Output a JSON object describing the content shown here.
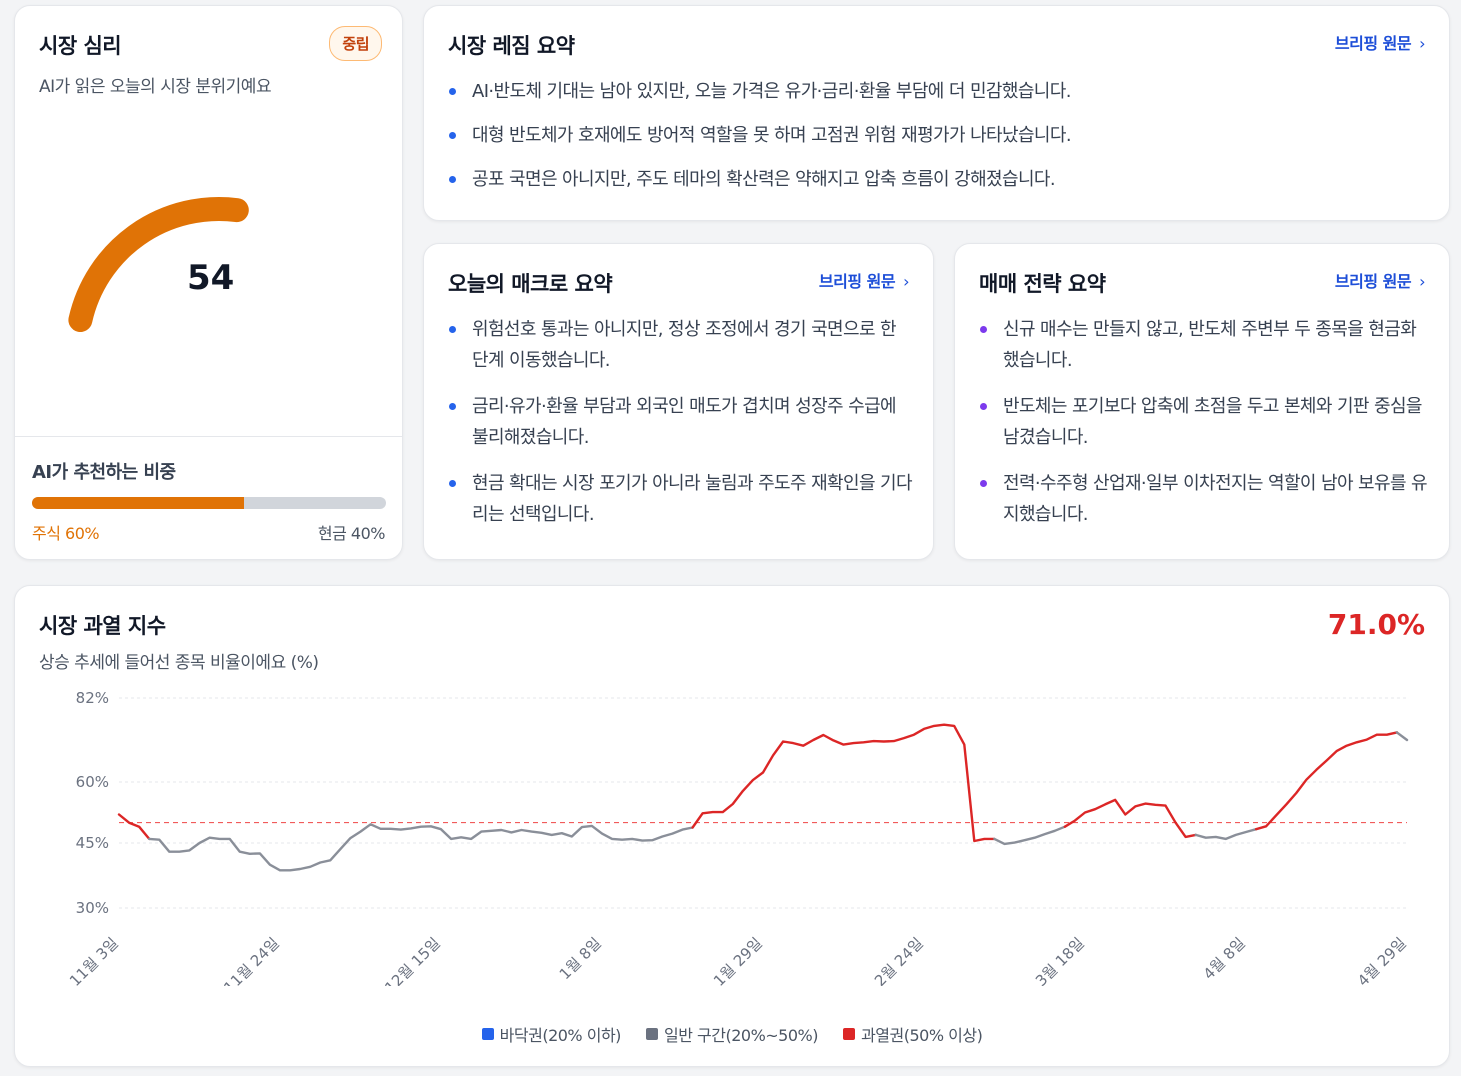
{
  "sentiment": {
    "title": "시장 심리",
    "subtitle": "AI가 읽은 오늘의 시장 분위기예요",
    "badge": "중립",
    "score": "54",
    "score_value": 54,
    "gauge_color": "#e07306",
    "weight_title": "AI가 추천하는 비중",
    "stock_label": "주식 60%",
    "cash_label": "현금 40%",
    "stock_fraction": 0.6
  },
  "regime": {
    "title": "시장 레짐 요약",
    "link": "브리핑 원문",
    "bullets": [
      "AI·반도체 기대는 남아 있지만, 오늘 가격은 유가·금리·환율 부담에 더 민감했습니다.",
      "대형 반도체가 호재에도 방어적 역할을 못 하며 고점권 위험 재평가가 나타났습니다.",
      "공포 국면은 아니지만, 주도 테마의 확산력은 약해지고 압축 흐름이 강해졌습니다."
    ]
  },
  "macro": {
    "title": "오늘의 매크로 요약",
    "link": "브리핑 원문",
    "bullets": [
      "위험선호 통과는 아니지만, 정상 조정에서 경기 국면으로 한 단계 이동했습니다.",
      "금리·유가·환율 부담과 외국인 매도가 겹치며 성장주 수급에 불리해졌습니다.",
      "현금 확대는 시장 포기가 아니라 눌림과 주도주 재확인을 기다리는 선택입니다."
    ]
  },
  "strategy": {
    "title": "매매 전략 요약",
    "link": "브리핑 원문",
    "bullets": [
      "신규 매수는 만들지 않고, 반도체 주변부 두 종목을 현금화했습니다.",
      "반도체는 포기보다 압축에 초점을 두고 본체와 기판 중심을 남겼습니다.",
      "전력·수주형 산업재·일부 이차전지는 역할이 남아 보유를 유지했습니다."
    ]
  },
  "overheat": {
    "title": "시장 과열 지수",
    "subtitle": "상승 추세에 들어선 종목 비율이에요 (%)",
    "current": "71.0%",
    "current_color": "#dc2626",
    "legend": [
      {
        "label": "바닥권(20% 이하)",
        "color": "#2563eb"
      },
      {
        "label": "일반 구간(20%~50%)",
        "color": "#6b7280"
      },
      {
        "label": "과열권(50% 이상)",
        "color": "#dc2626"
      }
    ]
  },
  "chart_data": {
    "type": "line",
    "yticks": [
      "82%",
      "60%",
      "45%",
      "30%"
    ],
    "ytick_values": [
      82,
      60,
      45,
      30
    ],
    "ylim": [
      30,
      82
    ],
    "xticks": [
      "11월 3일",
      "11월 24일",
      "12월 15일",
      "1월 8일",
      "1월 29일",
      "2월 24일",
      "3월 18일",
      "4월 8일",
      "4월 29일"
    ],
    "threshold": 50,
    "series": [
      {
        "values": [
          52,
          50,
          49,
          46,
          45.8,
          43,
          43,
          43.3,
          45,
          46.3,
          46,
          46,
          43,
          42.5,
          42.6,
          40,
          38.7,
          38.7,
          39,
          39.5,
          40.5,
          41,
          43.6,
          46.2,
          47.8,
          49.6,
          48.5,
          48.5,
          48.3,
          48.6,
          49,
          49.1,
          48.4,
          46,
          46.4,
          46,
          47.8,
          48,
          48.2,
          47.6,
          48.2,
          47.8,
          47.5,
          47,
          47.4,
          46.6,
          48.9,
          49.2,
          47.3,
          46,
          45.8,
          46,
          45.6,
          45.7,
          46.6,
          47.3,
          48.3,
          48.8,
          52.3,
          52.6,
          52.6,
          54.6,
          57.8,
          60.5,
          62.5,
          67,
          70.6,
          70.2,
          69.5,
          71,
          72.3,
          70.9,
          69.8,
          70.2,
          70.4,
          70.7,
          70.6,
          70.7,
          71.5,
          72.4,
          73.9,
          74.7,
          75,
          74.7,
          69.8,
          45.5,
          46,
          46,
          44.8,
          45.1,
          45.7,
          46.3,
          47.2,
          48,
          49,
          50.5,
          52.5,
          53.3,
          54.5,
          55.6,
          52,
          54,
          54.7,
          54.4,
          54.2,
          50,
          46.5,
          47,
          46.3,
          46.5,
          46,
          47,
          47.7,
          48.4,
          49.1,
          51.8,
          54.5,
          57.3,
          60.6,
          63.2,
          65.6,
          68.1,
          69.5,
          70.4,
          71.1,
          72.4,
          72.4,
          73,
          71
        ],
        "highlight_ranges": [
          [
            0,
            2
          ],
          [
            57,
            86
          ],
          [
            94,
            106
          ],
          [
            113,
            126
          ]
        ]
      }
    ]
  }
}
